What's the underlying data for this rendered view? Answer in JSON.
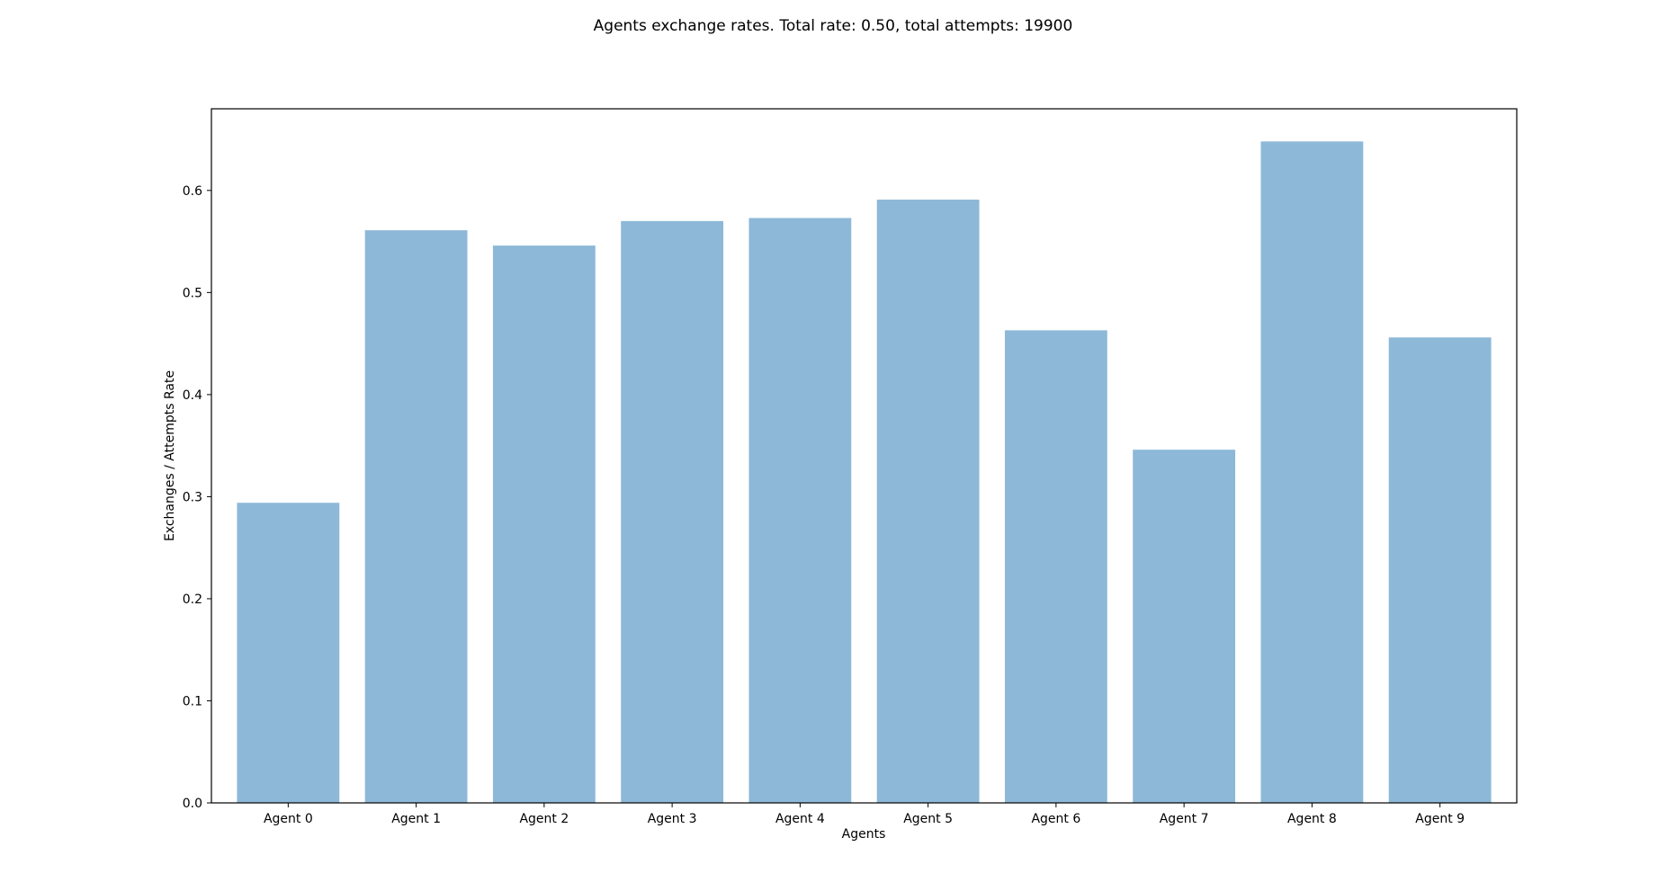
{
  "chart_data": {
    "type": "bar",
    "title": "Agents exchange rates. Total rate: 0.50, total attempts: 19900",
    "xlabel": "Agents",
    "ylabel": "Exchanges / Attempts Rate",
    "categories": [
      "Agent 0",
      "Agent 1",
      "Agent 2",
      "Agent 3",
      "Agent 4",
      "Agent 5",
      "Agent 6",
      "Agent 7",
      "Agent 8",
      "Agent 9"
    ],
    "values": [
      0.294,
      0.561,
      0.546,
      0.57,
      0.573,
      0.591,
      0.463,
      0.346,
      0.648,
      0.456
    ],
    "ylim": [
      0,
      0.68
    ],
    "yticks": [
      "0.0",
      "0.1",
      "0.2",
      "0.3",
      "0.4",
      "0.5",
      "0.6"
    ],
    "grid": false,
    "legend": "none",
    "bar_color": "#8db8d8"
  }
}
